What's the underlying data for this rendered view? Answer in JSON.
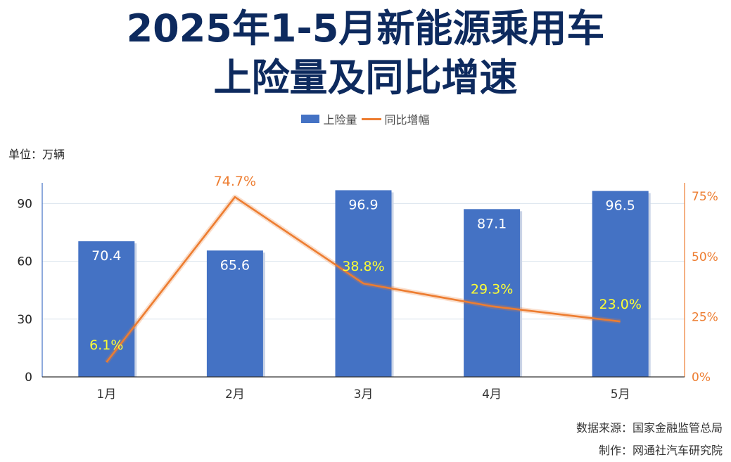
{
  "title_line1": "2025年1-5月新能源乘用车",
  "title_line2": "上险量及同比增速",
  "unit_label": "单位：万辆",
  "footer_source": "数据来源：国家金融监管总局",
  "footer_maker": "制作：网通社汽车研究院",
  "colors": {
    "bar": "#4472c4",
    "line": "#ed7d31",
    "title": "#0d2a5e",
    "pct_label_inside": "#ffff33"
  },
  "chart_data": {
    "type": "bar",
    "categories": [
      "1月",
      "2月",
      "3月",
      "4月",
      "5月"
    ],
    "series": [
      {
        "name": "上险量",
        "type": "bar",
        "axis": "left",
        "values": [
          70.4,
          65.6,
          96.9,
          87.1,
          96.5
        ],
        "labels": [
          "70.4",
          "65.6",
          "96.9",
          "87.1",
          "96.5"
        ]
      },
      {
        "name": "同比增幅",
        "type": "line",
        "axis": "right",
        "values": [
          6.1,
          74.7,
          38.8,
          29.3,
          23.0
        ],
        "labels": [
          "6.1%",
          "74.7%",
          "38.8%",
          "29.3%",
          "23.0%"
        ]
      }
    ],
    "y_left": {
      "min": 0,
      "max": 100,
      "ticks": [
        0,
        30,
        60,
        90
      ],
      "tick_labels": [
        "0",
        "30",
        "60",
        "90"
      ]
    },
    "y_right": {
      "min": 0,
      "max": 80,
      "ticks": [
        0,
        25,
        50,
        75
      ],
      "tick_labels": [
        "0%",
        "25%",
        "50%",
        "75%"
      ]
    },
    "grid": true,
    "legend_position": "top-center"
  }
}
